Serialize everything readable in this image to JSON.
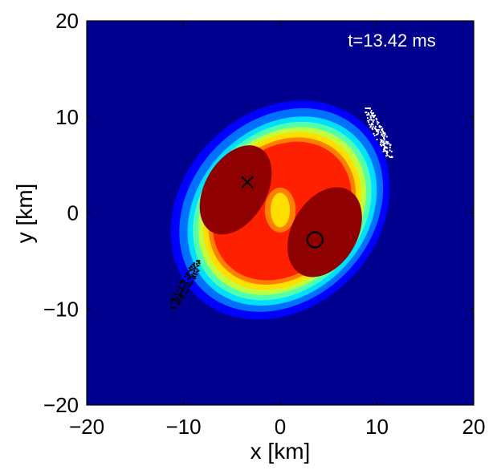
{
  "chart_data": {
    "type": "heatmap",
    "subtype": "filled-contour",
    "annotation": "t=13.42 ms",
    "xlabel": "x [km]",
    "ylabel": "y [km]",
    "xlim": [
      -20,
      20
    ],
    "ylim": [
      -20,
      20
    ],
    "xticks": [
      -20,
      -10,
      0,
      10,
      20
    ],
    "yticks": [
      -20,
      -10,
      0,
      10,
      20
    ],
    "xtick_labels": [
      "−20",
      "−10",
      "0",
      "10",
      "20"
    ],
    "ytick_labels": [
      "−20",
      "−10",
      "0",
      "10",
      "20"
    ],
    "grid": false,
    "background_color": "#00008f",
    "contour_levels": [
      {
        "color": "#0000ff",
        "rx": 12.4,
        "ry": 10.2,
        "cx": 0.0,
        "cy": 0.3,
        "rotation_deg": 45
      },
      {
        "color": "#0070ff",
        "rx": 11.6,
        "ry": 9.4,
        "cx": 0.1,
        "cy": 0.3,
        "rotation_deg": 45
      },
      {
        "color": "#00dfff",
        "rx": 10.8,
        "ry": 8.7,
        "cx": 0.2,
        "cy": 0.2,
        "rotation_deg": 45
      },
      {
        "color": "#50ffaf",
        "rx": 10.2,
        "ry": 8.2,
        "cx": 0.2,
        "cy": 0.2,
        "rotation_deg": 45
      },
      {
        "color": "#bfff40",
        "rx": 9.6,
        "ry": 7.7,
        "cx": 0.2,
        "cy": 0.2,
        "rotation_deg": 45
      },
      {
        "color": "#ffdf00",
        "rx": 9.0,
        "ry": 7.3,
        "cx": 0.2,
        "cy": 0.2,
        "rotation_deg": 45
      },
      {
        "color": "#ff8000",
        "rx": 8.4,
        "ry": 6.8,
        "cx": 0.2,
        "cy": 0.2,
        "rotation_deg": 45
      },
      {
        "color": "#ff2000",
        "rx": 7.9,
        "ry": 6.4,
        "cx": 0.2,
        "cy": 0.2,
        "rotation_deg": 45
      }
    ],
    "core_regions": [
      {
        "color": "#8f0000",
        "cx": -4.6,
        "cy": 2.4,
        "rx": 5.0,
        "ry": 3.2,
        "rotation_deg": 60
      },
      {
        "color": "#8f0000",
        "cx": 4.6,
        "cy": -2.0,
        "rx": 5.0,
        "ry": 3.4,
        "rotation_deg": 60
      },
      {
        "color": "#ff2000",
        "cx": -1.5,
        "cy": -4.5,
        "rx": 1.6,
        "ry": 1.0,
        "rotation_deg": -40
      },
      {
        "color": "#ff2000",
        "cx": 2.8,
        "cy": 4.2,
        "rx": 1.4,
        "ry": 0.9,
        "rotation_deg": -40
      }
    ],
    "center_feature": {
      "color_outer": "#ff8000",
      "color_inner": "#ffdf00",
      "cx": 0.0,
      "cy": 0.3,
      "rx": 1.0,
      "ry": 1.8
    },
    "markers": [
      {
        "name": "cross",
        "symbol": "x",
        "x": -3.4,
        "y": 3.2
      },
      {
        "name": "circle",
        "symbol": "o",
        "x": 3.6,
        "y": -2.8
      }
    ],
    "particle_clusters": [
      {
        "name": "white-tracers",
        "color": "#ffffff",
        "x_range": [
          8.8,
          11.6
        ],
        "y_range": [
          5.8,
          10.9
        ]
      },
      {
        "name": "black-tracers",
        "color": "#000000",
        "x_range": [
          -11.3,
          -8.3
        ],
        "y_range": [
          -9.9,
          -5.0
        ]
      }
    ]
  }
}
